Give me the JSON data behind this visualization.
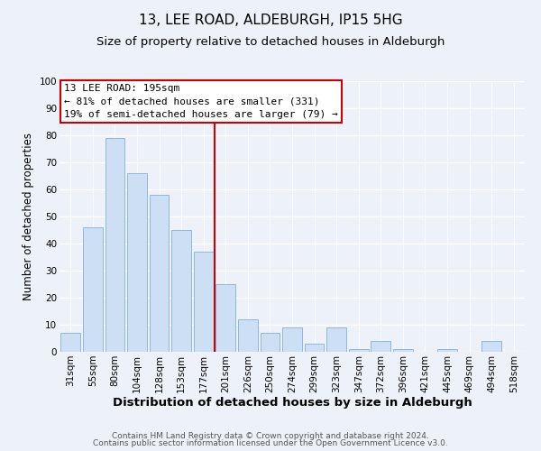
{
  "title": "13, LEE ROAD, ALDEBURGH, IP15 5HG",
  "subtitle": "Size of property relative to detached houses in Aldeburgh",
  "xlabel": "Distribution of detached houses by size in Aldeburgh",
  "ylabel": "Number of detached properties",
  "bar_labels": [
    "31sqm",
    "55sqm",
    "80sqm",
    "104sqm",
    "128sqm",
    "153sqm",
    "177sqm",
    "201sqm",
    "226sqm",
    "250sqm",
    "274sqm",
    "299sqm",
    "323sqm",
    "347sqm",
    "372sqm",
    "396sqm",
    "421sqm",
    "445sqm",
    "469sqm",
    "494sqm",
    "518sqm"
  ],
  "bar_values": [
    7,
    46,
    79,
    66,
    58,
    45,
    37,
    25,
    12,
    7,
    9,
    3,
    9,
    1,
    4,
    1,
    0,
    1,
    0,
    4,
    0
  ],
  "bar_color": "#ccdff5",
  "bar_edge_color": "#90b8d8",
  "vline_color": "#cc0000",
  "ylim": [
    0,
    100
  ],
  "annotation_title": "13 LEE ROAD: 195sqm",
  "annotation_line1": "← 81% of detached houses are smaller (331)",
  "annotation_line2": "19% of semi-detached houses are larger (79) →",
  "annotation_box_color": "#ffffff",
  "annotation_box_edge": "#cc0000",
  "footer1": "Contains HM Land Registry data © Crown copyright and database right 2024.",
  "footer2": "Contains public sector information licensed under the Open Government Licence v3.0.",
  "background_color": "#edf2fa",
  "grid_color": "#ffffff",
  "title_fontsize": 11,
  "subtitle_fontsize": 9.5,
  "xlabel_fontsize": 9.5,
  "ylabel_fontsize": 8.5,
  "tick_fontsize": 7.5,
  "ann_fontsize": 8,
  "footer_fontsize": 6.5
}
